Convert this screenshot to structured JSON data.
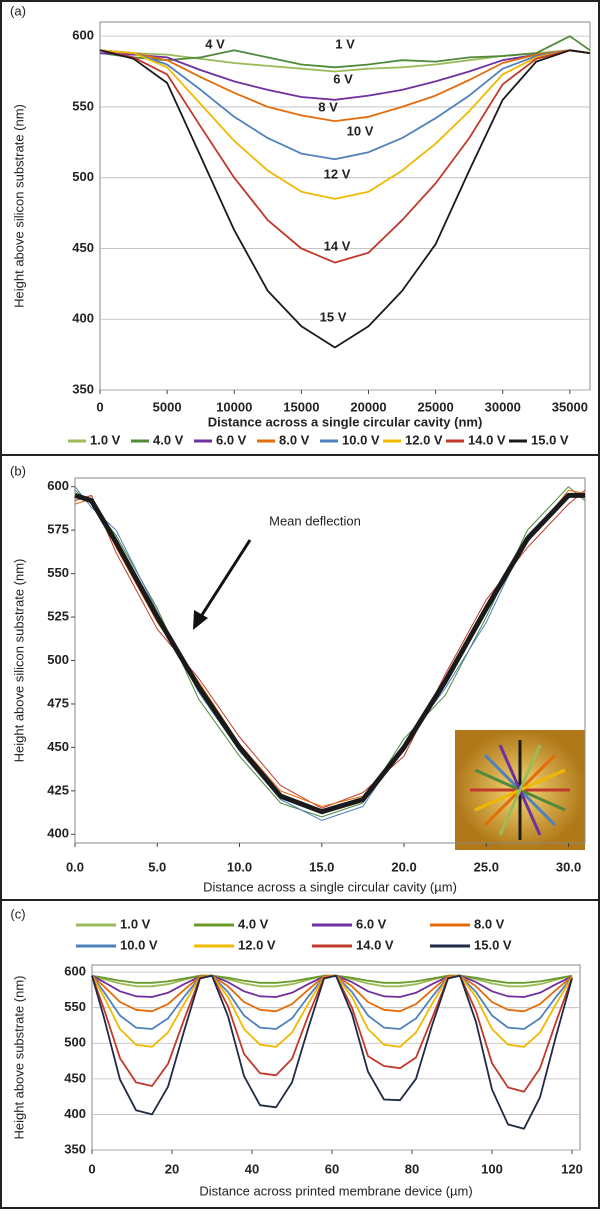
{
  "chart_data": [
    {
      "type": "line",
      "panel_label": "(a)",
      "x_label": "Distance across a single circular cavity (nm)",
      "y_label": "Height above silicon substrate (nm)",
      "x": [
        0,
        2500,
        5000,
        7500,
        10000,
        12500,
        15000,
        17500,
        20000,
        22500,
        25000,
        27500,
        30000,
        32500,
        35000,
        36500
      ],
      "xlim": [
        0,
        36500
      ],
      "ylim": [
        350,
        610
      ],
      "xticks": [
        0,
        5000,
        10000,
        15000,
        20000,
        25000,
        30000,
        35000
      ],
      "yticks": [
        350,
        400,
        450,
        500,
        550,
        600
      ],
      "grid": true,
      "legend": "bottom",
      "series": [
        {
          "name": "1.0 V",
          "color": "#9bbb59",
          "values": [
            590,
            588,
            587,
            584,
            581,
            579,
            577,
            575,
            577,
            578,
            580,
            583,
            586,
            588,
            590,
            588
          ]
        },
        {
          "name": "4.0 V",
          "color": "#4f8a3a",
          "values": [
            588,
            585,
            583,
            585,
            590,
            585,
            580,
            578,
            580,
            583,
            582,
            585,
            586,
            588,
            600,
            590
          ]
        },
        {
          "name": "6.0 V",
          "color": "#7030a0",
          "values": [
            588,
            587,
            585,
            576,
            568,
            562,
            557,
            555,
            558,
            562,
            568,
            575,
            583,
            587,
            590,
            588
          ]
        },
        {
          "name": "8.0 V",
          "color": "#e46c0a",
          "values": [
            590,
            588,
            583,
            571,
            560,
            550,
            544,
            540,
            543,
            550,
            558,
            569,
            581,
            587,
            590,
            588
          ]
        },
        {
          "name": "10.0 V",
          "color": "#4f81bd",
          "values": [
            590,
            588,
            580,
            562,
            543,
            528,
            517,
            513,
            518,
            528,
            542,
            558,
            577,
            586,
            590,
            588
          ]
        },
        {
          "name": "12.0 V",
          "color": "#f2b800",
          "values": [
            590,
            588,
            578,
            552,
            526,
            505,
            490,
            485,
            490,
            505,
            524,
            547,
            573,
            585,
            590,
            588
          ]
        },
        {
          "name": "14.0 V",
          "color": "#c0392b",
          "values": [
            590,
            585,
            573,
            536,
            500,
            470,
            450,
            440,
            447,
            470,
            496,
            528,
            566,
            584,
            590,
            588
          ]
        },
        {
          "name": "15.0 V",
          "color": "#1a1a1a",
          "values": [
            590,
            584,
            567,
            515,
            463,
            420,
            395,
            380,
            395,
            420,
            453,
            505,
            555,
            582,
            590,
            588
          ]
        }
      ],
      "annotations": [
        "4 V",
        "1 V",
        "6 V",
        "8 V",
        "10 V",
        "12 V",
        "14 V",
        "15 V"
      ]
    },
    {
      "type": "line",
      "panel_label": "(b)",
      "x_label": "Distance across a single circular cavity (µm)",
      "y_label": "Height above silicon substrate (nm)",
      "x": [
        0,
        1,
        2.5,
        5,
        7.5,
        10,
        12.5,
        15,
        17.5,
        20,
        22.5,
        25,
        27.5,
        30,
        31
      ],
      "xlim": [
        0,
        31
      ],
      "ylim": [
        395,
        605
      ],
      "xticks": [
        {
          "value": 0,
          "label": "0.0"
        },
        {
          "value": 5,
          "label": "5.0"
        },
        {
          "value": 10,
          "label": "10.0"
        },
        {
          "value": 15,
          "label": "15.0"
        },
        {
          "value": 20,
          "label": "20.0"
        },
        {
          "value": 25,
          "label": "25.0"
        },
        {
          "value": 30,
          "label": "30.0"
        }
      ],
      "yticks": [
        400,
        425,
        450,
        475,
        500,
        525,
        550,
        575,
        600
      ],
      "grid": false,
      "series": [
        {
          "color": "#4f8a3a",
          "width": 1,
          "values": [
            598,
            590,
            572,
            530,
            478,
            445,
            418,
            410,
            418,
            455,
            480,
            525,
            575,
            600,
            592
          ]
        },
        {
          "color": "#c0392b",
          "width": 1,
          "values": [
            592,
            595,
            562,
            518,
            490,
            456,
            428,
            415,
            424,
            445,
            492,
            535,
            565,
            590,
            598
          ]
        },
        {
          "color": "#4f81bd",
          "width": 1,
          "values": [
            600,
            588,
            575,
            528,
            482,
            448,
            420,
            408,
            416,
            452,
            484,
            522,
            572,
            596,
            594
          ]
        },
        {
          "color": "#e46c0a",
          "width": 1,
          "values": [
            590,
            593,
            565,
            522,
            488,
            452,
            425,
            416,
            422,
            448,
            490,
            532,
            568,
            598,
            596
          ]
        },
        {
          "color": "#1a1a1a",
          "width": 5,
          "values": [
            595,
            592,
            568,
            525,
            485,
            450,
            422,
            413,
            420,
            450,
            488,
            530,
            570,
            595,
            595
          ]
        }
      ],
      "annotations": [
        "Mean deflection"
      ]
    },
    {
      "type": "line",
      "panel_label": "(c)",
      "x_label": "Distance across printed membrane device (µm)",
      "y_label": "Height above substrate (nm)",
      "x": [
        0,
        3,
        7,
        11,
        15,
        19,
        23,
        27,
        30,
        34,
        38,
        42,
        46,
        50,
        54,
        58,
        61,
        65,
        69,
        73,
        77,
        81,
        85,
        89,
        92,
        96,
        100,
        104,
        108,
        112,
        116,
        120
      ],
      "xlim": [
        0,
        122
      ],
      "ylim": [
        350,
        610
      ],
      "xticks": [
        0,
        20,
        40,
        60,
        80,
        100,
        120
      ],
      "yticks": [
        350,
        400,
        450,
        500,
        550,
        600
      ],
      "grid": true,
      "legend": "top",
      "series": [
        {
          "name": "1.0 V",
          "color": "#9bbb59",
          "values": [
            595,
            590,
            584,
            580,
            580,
            583,
            589,
            595,
            595,
            590,
            584,
            580,
            580,
            583,
            589,
            595,
            595,
            590,
            584,
            580,
            580,
            583,
            589,
            595,
            595,
            590,
            584,
            580,
            580,
            583,
            589,
            595
          ]
        },
        {
          "name": "4.0 V",
          "color": "#6a9a2a",
          "values": [
            595,
            592,
            588,
            585,
            585,
            587,
            591,
            595,
            595,
            592,
            588,
            585,
            585,
            587,
            591,
            595,
            595,
            592,
            588,
            585,
            585,
            587,
            591,
            595,
            595,
            592,
            588,
            585,
            585,
            587,
            591,
            595
          ]
        },
        {
          "name": "6.0 V",
          "color": "#7030a0",
          "values": [
            595,
            586,
            573,
            566,
            565,
            571,
            583,
            594,
            595,
            586,
            573,
            566,
            565,
            571,
            583,
            594,
            595,
            586,
            573,
            566,
            565,
            571,
            583,
            594,
            595,
            586,
            573,
            566,
            565,
            571,
            583,
            594
          ]
        },
        {
          "name": "8.0 V",
          "color": "#e46c0a",
          "values": [
            595,
            580,
            558,
            547,
            545,
            555,
            575,
            594,
            595,
            580,
            558,
            547,
            545,
            555,
            575,
            594,
            595,
            580,
            558,
            547,
            545,
            555,
            575,
            594,
            595,
            580,
            558,
            547,
            545,
            555,
            575,
            594
          ]
        },
        {
          "name": "10.0 V",
          "color": "#4f81bd",
          "values": [
            595,
            572,
            539,
            522,
            520,
            535,
            565,
            593,
            595,
            572,
            539,
            522,
            520,
            535,
            565,
            593,
            595,
            572,
            539,
            522,
            520,
            535,
            565,
            593,
            595,
            572,
            539,
            522,
            520,
            535,
            565,
            593
          ]
        },
        {
          "name": "12.0 V",
          "color": "#f2b800",
          "values": [
            595,
            565,
            520,
            498,
            495,
            515,
            555,
            593,
            595,
            565,
            520,
            498,
            495,
            515,
            555,
            593,
            595,
            565,
            520,
            498,
            495,
            515,
            555,
            593,
            595,
            565,
            520,
            498,
            495,
            515,
            555,
            593
          ]
        },
        {
          "name": "14.0 V",
          "color": "#c0392b",
          "values": [
            595,
            548,
            479,
            445,
            440,
            471,
            533,
            592,
            595,
            552,
            485,
            458,
            455,
            478,
            538,
            592,
            595,
            550,
            482,
            468,
            465,
            480,
            535,
            592,
            595,
            545,
            472,
            438,
            432,
            465,
            530,
            592
          ]
        },
        {
          "name": "15.0 V",
          "color": "#1f2a44",
          "values": [
            595,
            536,
            449,
            406,
            400,
            439,
            517,
            591,
            595,
            538,
            454,
            413,
            410,
            445,
            520,
            591,
            595,
            541,
            460,
            421,
            420,
            450,
            525,
            591,
            595,
            530,
            435,
            386,
            380,
            424,
            510,
            591
          ]
        }
      ]
    }
  ]
}
